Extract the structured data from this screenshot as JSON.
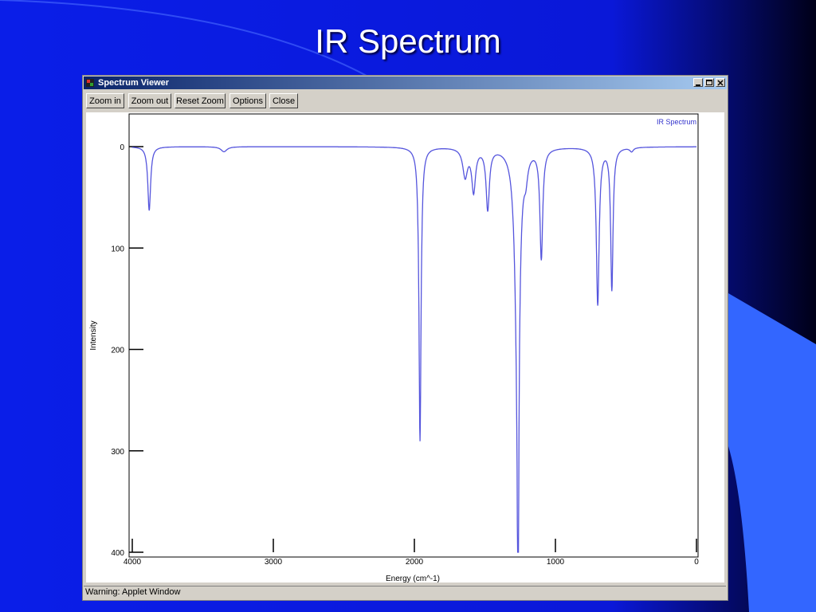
{
  "slide": {
    "title": "IR Spectrum",
    "colors": {
      "background": "#0a1ee8",
      "dark_edge": "#000033",
      "accent_shape": "#3366ff"
    }
  },
  "window": {
    "title": "Spectrum Viewer",
    "icon": "applet-icon",
    "caption_buttons": [
      "minimize-icon",
      "maximize-icon",
      "close-icon"
    ]
  },
  "toolbar": {
    "zoom_in_label": "Zoom in",
    "zoom_out_label": "Zoom out",
    "reset_zoom_label": "Reset Zoom",
    "options_label": "Options",
    "close_label": "Close"
  },
  "status": {
    "text": "Warning: Applet Window"
  },
  "chart_data": {
    "type": "line",
    "title": "",
    "legend": "IR Spectrum",
    "legend_position": "top-right",
    "xlabel": "Energy (cm^-1)",
    "ylabel": "Intensity",
    "xlim": [
      4000,
      0
    ],
    "ylim": [
      0,
      400
    ],
    "y_inverted": true,
    "grid": false,
    "line_color": "#5555dd",
    "x_ticks": [
      "4000",
      "3000",
      "2000",
      "1000",
      "0"
    ],
    "y_ticks": [
      "0",
      "100",
      "200",
      "300",
      "400"
    ],
    "baseline": 0,
    "peaks": [
      {
        "x": 3880,
        "y": 63,
        "width": 12
      },
      {
        "x": 3350,
        "y": 5,
        "width": 25
      },
      {
        "x": 1960,
        "y": 290,
        "width": 9
      },
      {
        "x": 1640,
        "y": 28,
        "width": 20
      },
      {
        "x": 1580,
        "y": 42,
        "width": 16
      },
      {
        "x": 1480,
        "y": 60,
        "width": 14
      },
      {
        "x": 1265,
        "y": 325,
        "width": 6
      },
      {
        "x": 1270,
        "y": 180,
        "width": 22
      },
      {
        "x": 1210,
        "y": 18,
        "width": 15
      },
      {
        "x": 1100,
        "y": 108,
        "width": 12
      },
      {
        "x": 700,
        "y": 155,
        "width": 12
      },
      {
        "x": 600,
        "y": 140,
        "width": 10
      },
      {
        "x": 460,
        "y": 4,
        "width": 15
      }
    ]
  }
}
